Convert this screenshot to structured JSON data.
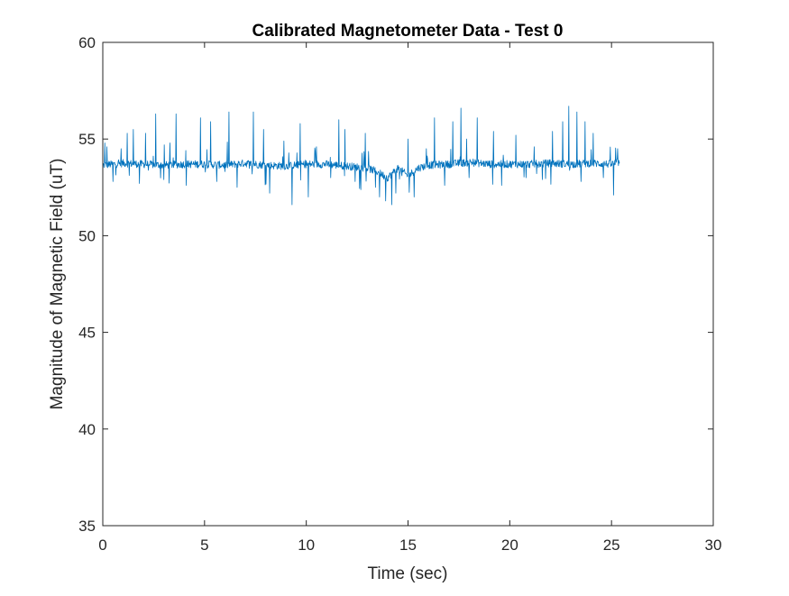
{
  "chart_data": {
    "type": "line",
    "title": "Calibrated Magnetometer Data - Test 0",
    "xlabel": "Time (sec)",
    "ylabel": "Magnitude of Magnetic Field (uT)",
    "xlim": [
      0,
      30
    ],
    "ylim": [
      35,
      60
    ],
    "xticks": [
      0,
      5,
      10,
      15,
      20,
      25,
      30
    ],
    "yticks": [
      35,
      40,
      45,
      50,
      55,
      60
    ],
    "grid": false,
    "line_color": "#0072BD",
    "series": [
      {
        "x_start": 0,
        "x_end": 25.4,
        "baseline": [
          [
            0,
            53.65
          ],
          [
            1,
            53.75
          ],
          [
            2,
            53.7
          ],
          [
            3,
            53.65
          ],
          [
            4,
            53.7
          ],
          [
            5,
            53.7
          ],
          [
            6,
            53.65
          ],
          [
            7,
            53.75
          ],
          [
            8,
            53.65
          ],
          [
            9,
            53.6
          ],
          [
            10,
            53.7
          ],
          [
            11,
            53.7
          ],
          [
            12,
            53.6
          ],
          [
            13,
            53.5
          ],
          [
            13.5,
            53.3
          ],
          [
            14,
            53.0
          ],
          [
            14.5,
            53.5
          ],
          [
            15,
            53.1
          ],
          [
            15.5,
            53.5
          ],
          [
            16,
            53.65
          ],
          [
            17,
            53.7
          ],
          [
            18,
            53.8
          ],
          [
            19,
            53.7
          ],
          [
            20,
            53.7
          ],
          [
            21,
            53.7
          ],
          [
            22,
            53.75
          ],
          [
            23,
            53.7
          ],
          [
            24,
            53.75
          ],
          [
            25,
            53.7
          ],
          [
            25.4,
            53.8
          ]
        ],
        "spikes": [
          [
            0.1,
            54.8
          ],
          [
            0.2,
            54.6
          ],
          [
            0.5,
            52.8
          ],
          [
            0.9,
            54.5
          ],
          [
            1.2,
            55.3
          ],
          [
            1.5,
            55.5
          ],
          [
            1.8,
            52.7
          ],
          [
            2.1,
            55.3
          ],
          [
            2.6,
            56.3
          ],
          [
            3.0,
            52.9
          ],
          [
            3.3,
            54.8
          ],
          [
            3.6,
            56.3
          ],
          [
            4.1,
            52.6
          ],
          [
            4.8,
            56.1
          ],
          [
            5.3,
            55.9
          ],
          [
            5.6,
            52.8
          ],
          [
            6.2,
            56.4
          ],
          [
            6.6,
            52.5
          ],
          [
            7.4,
            56.4
          ],
          [
            7.9,
            55.5
          ],
          [
            8.2,
            52.2
          ],
          [
            8.9,
            54.9
          ],
          [
            9.3,
            51.6
          ],
          [
            9.7,
            55.8
          ],
          [
            10.1,
            52.0
          ],
          [
            10.5,
            54.6
          ],
          [
            11.2,
            53.0
          ],
          [
            11.6,
            56.0
          ],
          [
            11.9,
            55.5
          ],
          [
            12.4,
            52.8
          ],
          [
            12.9,
            55.3
          ],
          [
            13.4,
            52.5
          ],
          [
            13.6,
            52.0
          ],
          [
            13.9,
            51.8
          ],
          [
            14.2,
            51.6
          ],
          [
            14.4,
            52.2
          ],
          [
            14.7,
            53.1
          ],
          [
            15.0,
            55.0
          ],
          [
            15.3,
            52.0
          ],
          [
            15.9,
            54.5
          ],
          [
            16.3,
            56.1
          ],
          [
            16.8,
            52.6
          ],
          [
            17.2,
            55.9
          ],
          [
            17.6,
            56.6
          ],
          [
            18.0,
            53.0
          ],
          [
            18.4,
            56.1
          ],
          [
            19.2,
            55.4
          ],
          [
            19.6,
            52.6
          ],
          [
            20.3,
            55.2
          ],
          [
            20.8,
            53.0
          ],
          [
            21.2,
            54.6
          ],
          [
            21.6,
            52.9
          ],
          [
            22.1,
            55.4
          ],
          [
            22.6,
            55.9
          ],
          [
            22.9,
            56.7
          ],
          [
            23.3,
            56.4
          ],
          [
            23.5,
            52.8
          ],
          [
            23.7,
            55.9
          ],
          [
            24.1,
            55.3
          ],
          [
            24.6,
            53.0
          ],
          [
            25.1,
            52.1
          ],
          [
            25.3,
            54.5
          ]
        ]
      }
    ]
  }
}
